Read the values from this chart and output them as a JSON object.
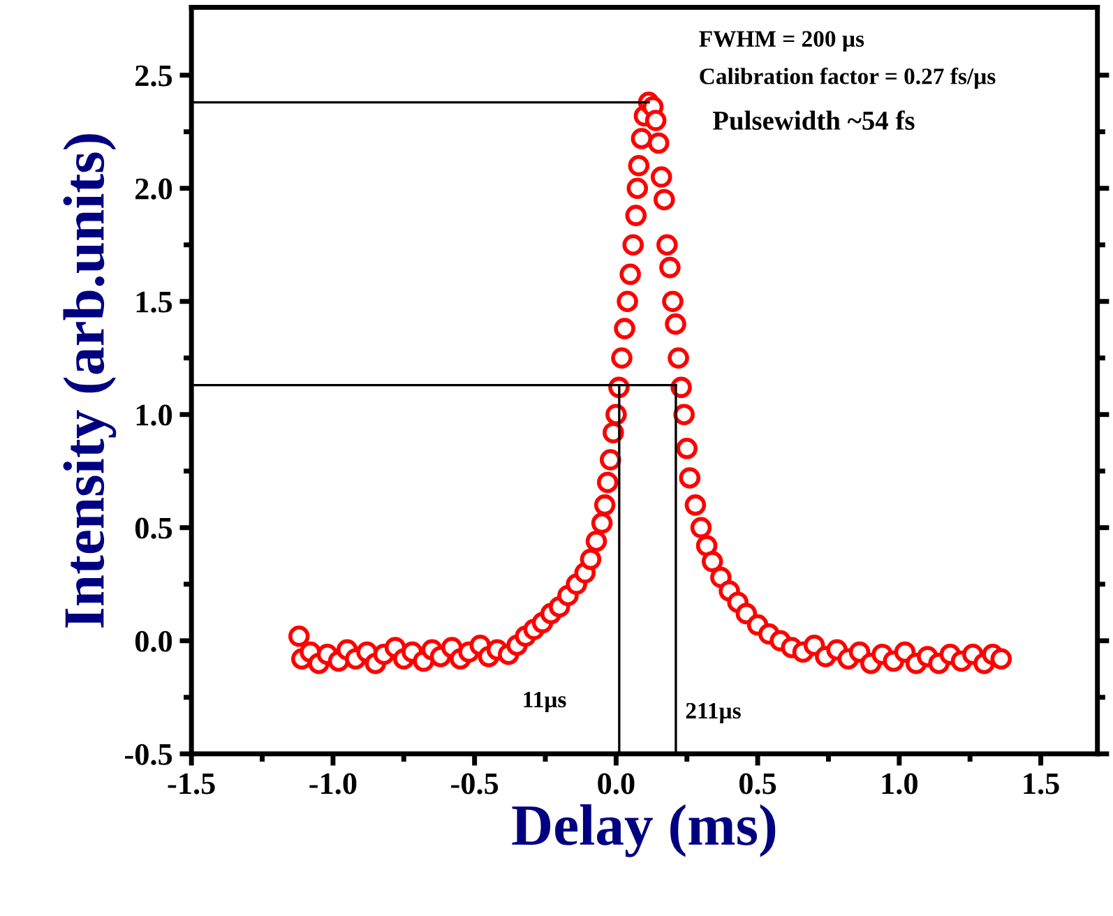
{
  "chart_data": {
    "type": "scatter",
    "xlabel": "Delay (ms)",
    "ylabel": "Intensity (arb.units)",
    "xlim": [
      -1.5,
      1.7
    ],
    "ylim": [
      -0.5,
      2.8
    ],
    "xticks": [
      -1.5,
      {
        "value": -1.25,
        "label": null
      },
      {
        "value": -1.0,
        "label": "-1.0"
      },
      {
        "value": -0.75,
        "label": null
      },
      -0.5,
      {
        "value": -0.25,
        "label": null
      },
      {
        "value": 0.0,
        "label": "0.0"
      },
      {
        "value": 0.25,
        "label": null
      },
      0.5,
      {
        "value": 0.75,
        "label": null
      },
      {
        "value": 1.0,
        "label": "1.0"
      },
      {
        "value": 1.25,
        "label": null
      },
      1.5
    ],
    "yticks": [
      -0.5,
      {
        "value": -0.25,
        "label": null
      },
      {
        "value": 0.0,
        "label": "0.0"
      },
      {
        "value": 0.25,
        "label": null
      },
      0.5,
      {
        "value": 0.75,
        "label": null
      },
      {
        "value": 1.0,
        "label": "1.0"
      },
      {
        "value": 1.25,
        "label": null
      },
      1.5,
      {
        "value": 1.75,
        "label": null
      },
      {
        "value": 2.0,
        "label": "2.0"
      },
      {
        "value": 2.25,
        "label": null
      },
      2.5
    ],
    "marker": "circle",
    "grid": false,
    "legend": false,
    "series": [
      {
        "color": "#ff0000",
        "x": [
          -1.12,
          -1.11,
          -1.08,
          -1.05,
          -1.02,
          -0.98,
          -0.95,
          -0.92,
          -0.88,
          -0.85,
          -0.82,
          -0.78,
          -0.75,
          -0.72,
          -0.68,
          -0.65,
          -0.62,
          -0.58,
          -0.55,
          -0.52,
          -0.48,
          -0.45,
          -0.42,
          -0.38,
          -0.35,
          -0.32,
          -0.29,
          -0.26,
          -0.23,
          -0.2,
          -0.17,
          -0.14,
          -0.11,
          -0.09,
          -0.07,
          -0.05,
          -0.04,
          -0.03,
          -0.02,
          -0.01,
          0.0,
          0.01,
          0.02,
          0.03,
          0.04,
          0.05,
          0.06,
          0.07,
          0.075,
          0.08,
          0.09,
          0.1,
          0.115,
          0.13,
          0.14,
          0.15,
          0.16,
          0.17,
          0.18,
          0.19,
          0.2,
          0.21,
          0.22,
          0.23,
          0.24,
          0.25,
          0.26,
          0.28,
          0.3,
          0.32,
          0.34,
          0.37,
          0.4,
          0.43,
          0.46,
          0.5,
          0.54,
          0.58,
          0.62,
          0.66,
          0.7,
          0.74,
          0.78,
          0.82,
          0.86,
          0.9,
          0.94,
          0.98,
          1.02,
          1.06,
          1.1,
          1.14,
          1.18,
          1.22,
          1.26,
          1.3,
          1.33,
          1.36
        ],
        "values": [
          0.02,
          -0.08,
          -0.05,
          -0.1,
          -0.06,
          -0.09,
          -0.04,
          -0.08,
          -0.05,
          -0.1,
          -0.06,
          -0.03,
          -0.08,
          -0.05,
          -0.09,
          -0.04,
          -0.07,
          -0.03,
          -0.08,
          -0.05,
          -0.02,
          -0.07,
          -0.04,
          -0.06,
          -0.02,
          0.02,
          0.05,
          0.08,
          0.12,
          0.15,
          0.2,
          0.25,
          0.3,
          0.36,
          0.44,
          0.52,
          0.6,
          0.7,
          0.8,
          0.92,
          1.0,
          1.12,
          1.25,
          1.38,
          1.5,
          1.62,
          1.75,
          1.88,
          2.0,
          2.1,
          2.22,
          2.32,
          2.38,
          2.36,
          2.3,
          2.2,
          2.05,
          1.95,
          1.75,
          1.65,
          1.5,
          1.4,
          1.25,
          1.12,
          1.0,
          0.85,
          0.72,
          0.6,
          0.5,
          0.42,
          0.35,
          0.28,
          0.22,
          0.17,
          0.12,
          0.07,
          0.03,
          0.0,
          -0.03,
          -0.05,
          -0.02,
          -0.07,
          -0.04,
          -0.08,
          -0.05,
          -0.1,
          -0.06,
          -0.09,
          -0.05,
          -0.1,
          -0.07,
          -0.1,
          -0.06,
          -0.09,
          -0.06,
          -0.1,
          -0.06,
          -0.08
        ]
      },
      {
        "type": "line",
        "color": "#000000",
        "marker": "none",
        "x": [
          -1.5,
          0.115
        ],
        "values": [
          2.38,
          2.38
        ]
      },
      {
        "type": "line",
        "color": "#000000",
        "marker": "none",
        "x": [
          -1.5,
          0.211
        ],
        "values": [
          1.13,
          1.13
        ]
      },
      {
        "type": "line",
        "color": "#000000",
        "marker": "none",
        "x": [
          0.011,
          0.011
        ],
        "values": [
          -0.5,
          1.13
        ]
      },
      {
        "type": "line",
        "color": "#000000",
        "marker": "none",
        "x": [
          0.211,
          0.211
        ],
        "values": [
          -0.5,
          1.13
        ]
      }
    ],
    "annotations": [
      "FWHM = 200 µs",
      "Calibration factor = 0.27 fs/µs",
      "Pulsewidth ~54 fs",
      "11µs",
      "211µs"
    ]
  }
}
